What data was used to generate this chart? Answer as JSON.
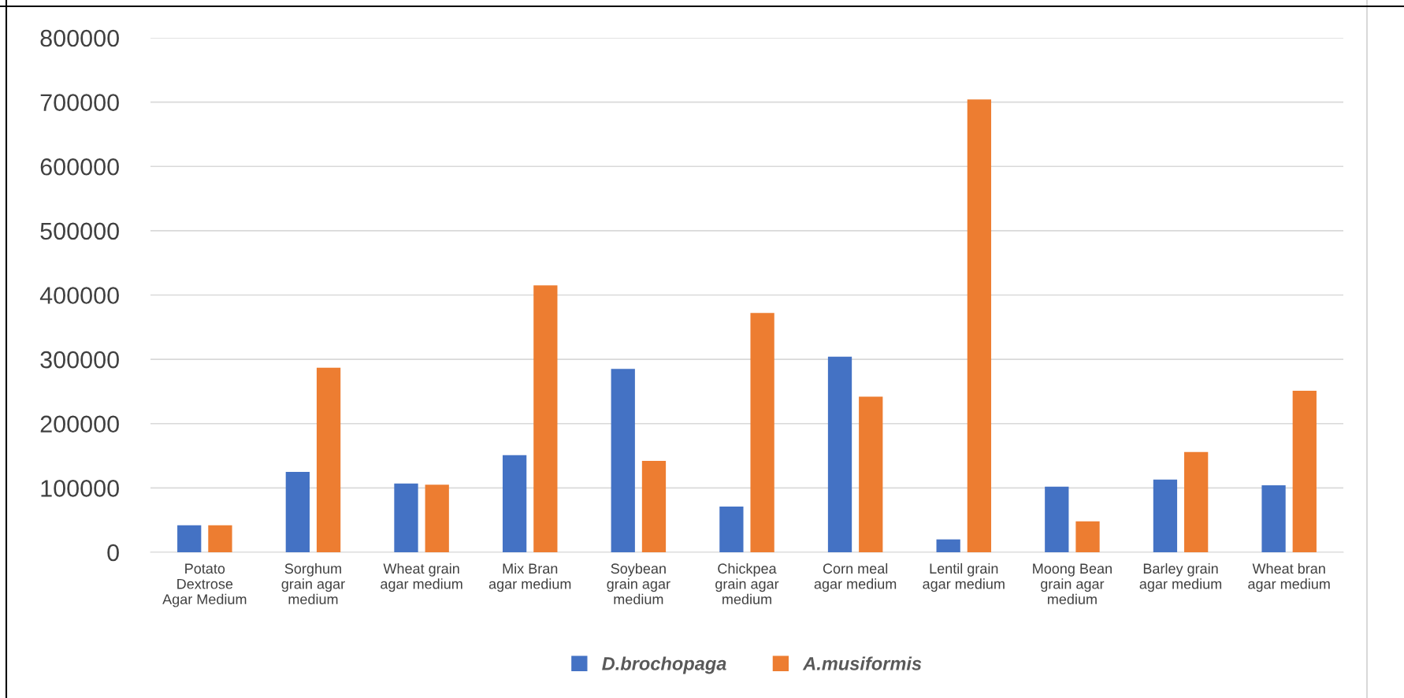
{
  "chart_data": {
    "type": "bar",
    "categories": [
      "Potato Dextrose Agar Medium",
      "Sorghum grain agar medium",
      "Wheat grain agar medium",
      "Mix Bran agar medium",
      "Soybean grain agar medium",
      "Chickpea grain agar medium",
      "Corn meal agar medium",
      "Lentil grain agar medium",
      "Moong Bean grain agar medium",
      "Barley grain agar medium",
      "Wheat bran agar medium"
    ],
    "series": [
      {
        "name": "D.brochopaga",
        "color": "#4472c4",
        "values": [
          42000,
          125000,
          107000,
          151000,
          285000,
          71000,
          304000,
          20000,
          102000,
          113000,
          104000
        ]
      },
      {
        "name": "A.musiformis",
        "color": "#ed7d31",
        "values": [
          42000,
          287000,
          105000,
          415000,
          142000,
          372000,
          242000,
          704000,
          48000,
          156000,
          251000
        ]
      }
    ],
    "ylim": [
      0,
      800000
    ],
    "yticks": [
      0,
      100000,
      200000,
      300000,
      400000,
      500000,
      600000,
      700000,
      800000
    ],
    "grid": "y",
    "legend": "bottom"
  }
}
